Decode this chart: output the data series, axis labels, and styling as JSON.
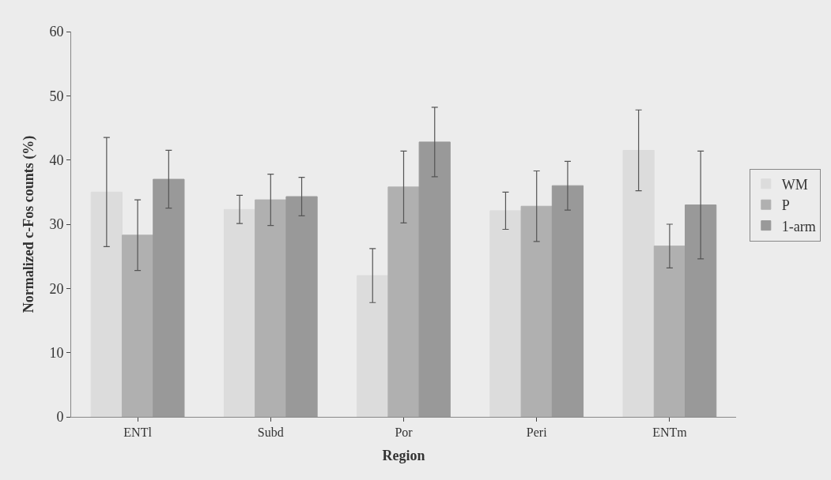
{
  "chart_data": {
    "type": "bar",
    "xlabel": "Region",
    "ylabel": "Normalized c-Fos counts (%)",
    "categories": [
      "ENTl",
      "Subd",
      "Por",
      "Peri",
      "ENTm"
    ],
    "series": [
      {
        "name": "WM",
        "color": "#dcdcdc",
        "values": [
          35,
          32.3,
          22,
          32.1,
          41.5
        ],
        "errors": [
          8.5,
          2.2,
          4.2,
          2.9,
          6.3
        ]
      },
      {
        "name": "P",
        "color": "#b0b0b0",
        "values": [
          28.3,
          33.8,
          35.8,
          32.8,
          26.6
        ],
        "errors": [
          5.5,
          4,
          5.6,
          5.5,
          3.4
        ]
      },
      {
        "name": "1-arm",
        "color": "#999999",
        "values": [
          37,
          34.3,
          42.8,
          36,
          33
        ],
        "errors": [
          4.5,
          3,
          5.4,
          3.8,
          8.4
        ]
      }
    ],
    "ylim": [
      0,
      60
    ],
    "yticks": [
      0,
      10,
      20,
      30,
      40,
      50,
      60
    ],
    "grid": false,
    "legend": "right"
  }
}
